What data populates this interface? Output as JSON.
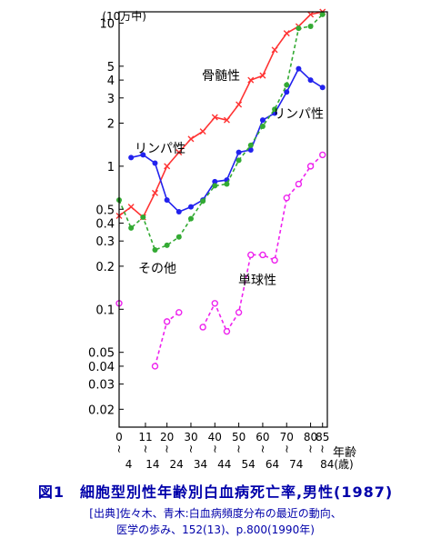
{
  "chart_data": {
    "type": "line",
    "y_scale": "log",
    "ylim": [
      0.015,
      12
    ],
    "y_unit_label": "(10万中)",
    "y_ticks": [
      {
        "v": 10,
        "label": "10"
      },
      {
        "v": 5,
        "label": "5"
      },
      {
        "v": 4,
        "label": "4"
      },
      {
        "v": 3,
        "label": "3"
      },
      {
        "v": 2,
        "label": "2"
      },
      {
        "v": 1,
        "label": "1"
      },
      {
        "v": 0.5,
        "label": "0.5"
      },
      {
        "v": 0.4,
        "label": "0.4"
      },
      {
        "v": 0.3,
        "label": "0.3"
      },
      {
        "v": 0.2,
        "label": "0.2"
      },
      {
        "v": 0.1,
        "label": "0.1"
      },
      {
        "v": 0.05,
        "label": "0.05"
      },
      {
        "v": 0.04,
        "label": "0.04"
      },
      {
        "v": 0.03,
        "label": "0.03"
      },
      {
        "v": 0.02,
        "label": "0.02"
      }
    ],
    "x_range": [
      0,
      87
    ],
    "x_label": "年齢",
    "x_ticks_top": [
      "0",
      "11",
      "20",
      "30",
      "40",
      "50",
      "60",
      "70",
      "80",
      "85"
    ],
    "x_ticks_top_pos": [
      0,
      11,
      20,
      30,
      40,
      50,
      60,
      70,
      80,
      85
    ],
    "x_ticks_bottom": [
      "4",
      "14",
      "24",
      "34",
      "44",
      "54",
      "64",
      "74",
      "84(歳)"
    ],
    "x_ticks_bottom_pos": [
      4,
      14,
      24,
      34,
      44,
      54,
      64,
      74,
      84
    ],
    "grid": false,
    "series": [
      {
        "name": "骨髄性",
        "color": "#ff3333",
        "style": "solid",
        "marker": "x",
        "x": [
          0,
          5,
          10,
          15,
          20,
          25,
          30,
          35,
          40,
          45,
          50,
          55,
          60,
          65,
          70,
          75,
          80,
          85
        ],
        "y": [
          0.45,
          0.52,
          0.44,
          0.65,
          1.0,
          1.25,
          1.55,
          1.75,
          2.2,
          2.1,
          2.7,
          4.0,
          4.3,
          6.5,
          8.5,
          9.5,
          11.5,
          12.0
        ]
      },
      {
        "name": "リンパ性",
        "color": "#2222ee",
        "style": "solid",
        "marker": "dot",
        "x": [
          5,
          10,
          15,
          20,
          25,
          30,
          35,
          40,
          45,
          50,
          55,
          60,
          65,
          70,
          75,
          80,
          85
        ],
        "y": [
          1.15,
          1.2,
          1.05,
          0.58,
          0.48,
          0.52,
          0.58,
          0.78,
          0.8,
          1.25,
          1.3,
          2.1,
          2.35,
          3.3,
          4.8,
          4.0,
          3.55
        ]
      },
      {
        "name": "その他",
        "color": "#33aa33",
        "style": "dashed",
        "marker": "dot",
        "x": [
          0,
          5,
          10,
          15,
          20,
          25,
          30,
          35,
          40,
          45,
          50,
          55,
          60,
          65,
          70,
          75,
          80,
          85
        ],
        "y": [
          0.58,
          0.37,
          0.44,
          0.26,
          0.28,
          0.32,
          0.43,
          0.57,
          0.73,
          0.75,
          1.1,
          1.4,
          1.9,
          2.5,
          3.7,
          9.2,
          9.5,
          11.5
        ]
      },
      {
        "name": "単球性",
        "color": "#ee22ee",
        "style": "dashed",
        "marker": "circle",
        "x": [
          0,
          5,
          10,
          15,
          20,
          25,
          30,
          35,
          40,
          45,
          50,
          55,
          60,
          65,
          70,
          75,
          80,
          85
        ],
        "y": [
          0.11,
          null,
          null,
          0.04,
          0.082,
          0.095,
          null,
          0.075,
          0.11,
          0.07,
          0.095,
          0.24,
          0.24,
          0.22,
          0.6,
          0.75,
          1.0,
          1.2
        ]
      }
    ],
    "series_labels": [
      {
        "text": "骨髄性",
        "color": "#000000"
      },
      {
        "text": "リンパ性",
        "color": "#000000"
      },
      {
        "text": "リンパ性",
        "color": "#000000"
      },
      {
        "text": "その他",
        "color": "#000000"
      },
      {
        "text": "単球性",
        "color": "#000000"
      }
    ]
  },
  "caption": {
    "title": "図1　細胞型別性年齢別白血病死亡率,男性(1987)",
    "source_line1": "[出典]佐々木、青木:白血病頻度分布の最近の動向、",
    "source_line2": "医学の歩み、152(13)、p.800(1990年)"
  }
}
